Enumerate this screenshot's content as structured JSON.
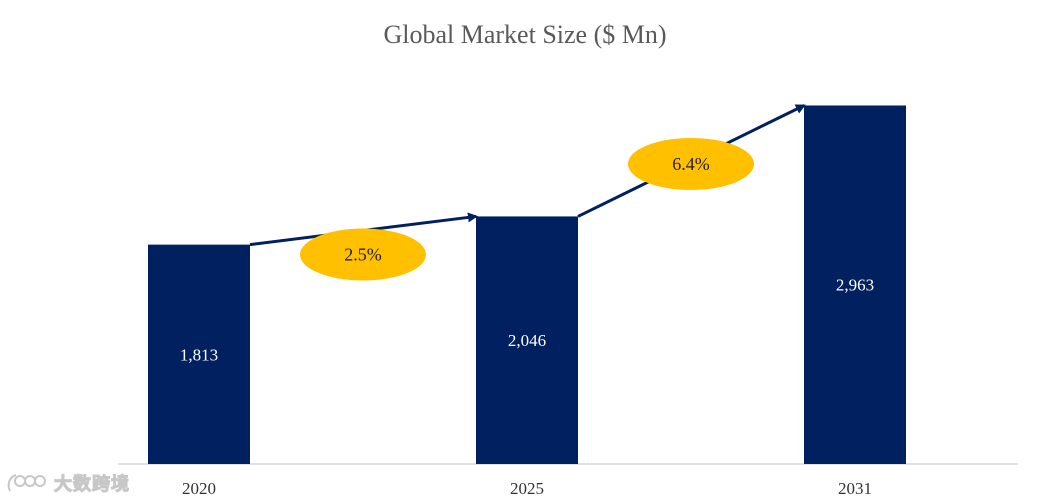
{
  "chart_data": {
    "type": "bar",
    "title": "Global Market Size ($ Mn)",
    "categories": [
      "2020",
      "2025",
      "2031"
    ],
    "values": [
      1813,
      2046,
      2963
    ],
    "value_labels": [
      "1,813",
      "2,046",
      "2,963"
    ],
    "ylim": [
      0,
      3000
    ],
    "grid": false,
    "legend": "none",
    "bar_color": "#002060",
    "annotations": [
      {
        "from": "2020",
        "to": "2025",
        "label": "2.5%"
      },
      {
        "from": "2025",
        "to": "2031",
        "label": "6.4%"
      }
    ],
    "annotation_color": "#FFC000",
    "arrow_color": "#002060"
  },
  "watermark": {
    "text": "大数跨境",
    "icon": "logo-icon"
  }
}
